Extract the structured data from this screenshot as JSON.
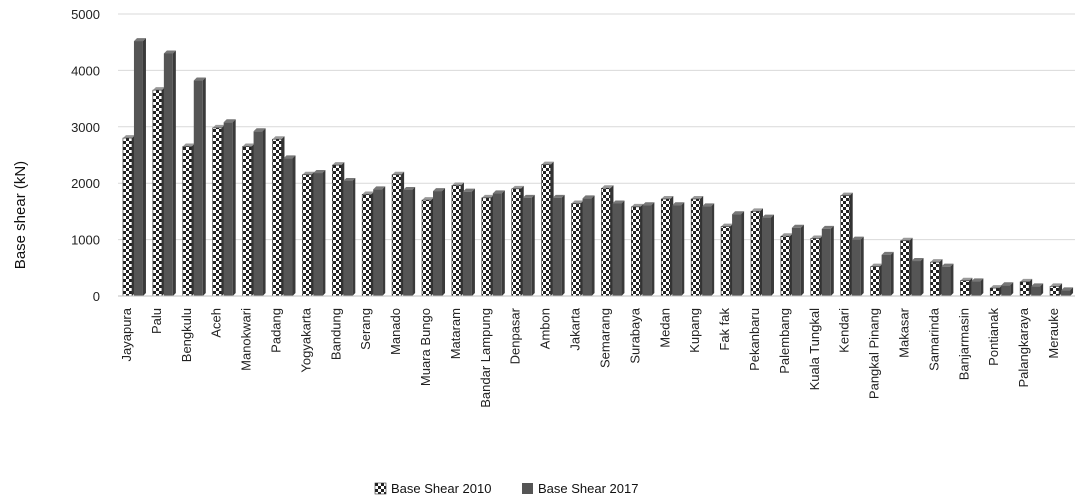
{
  "chart_data": {
    "type": "bar",
    "title": "",
    "xlabel": "",
    "ylabel": "Base shear (kN)",
    "ylim": [
      0,
      5000
    ],
    "yticks": [
      0,
      1000,
      2000,
      3000,
      4000,
      5000
    ],
    "grid": true,
    "legend_position": "bottom",
    "categories": [
      "Jayapura",
      "Palu",
      "Bengkulu",
      "Aceh",
      "Manokwari",
      "Padang",
      "Yogyakarta",
      "Bandung",
      "Serang",
      "Manado",
      "Muara Bungo",
      "Mataram",
      "Bandar Lampung",
      "Denpasar",
      "Ambon",
      "Jakarta",
      "Semarang",
      "Surabaya",
      "Medan",
      "Kupang",
      "Fak fak",
      "Pekanbaru",
      "Palembang",
      "Kuala Tungkal",
      "Kendari",
      "Pangkal Pinang",
      "Makasar",
      "Samarinda",
      "Banjarmasin",
      "Pontianak",
      "Palangkaraya",
      "Merauke"
    ],
    "series": [
      {
        "name": "Base Shear 2010",
        "pattern": "checker",
        "color": "#ffffff",
        "values": [
          2800,
          3650,
          2650,
          2980,
          2650,
          2780,
          2150,
          2320,
          1800,
          2150,
          1700,
          1960,
          1740,
          1900,
          2330,
          1640,
          1910,
          1580,
          1720,
          1720,
          1230,
          1500,
          1060,
          1020,
          1780,
          520,
          980,
          600,
          270,
          140,
          250,
          170
        ]
      },
      {
        "name": "Base Shear 2017",
        "pattern": "solid",
        "color": "#555555",
        "values": [
          4520,
          4300,
          3820,
          3080,
          2920,
          2440,
          2180,
          2040,
          1890,
          1880,
          1860,
          1850,
          1820,
          1740,
          1740,
          1730,
          1640,
          1610,
          1610,
          1590,
          1450,
          1390,
          1210,
          1190,
          1000,
          730,
          620,
          520,
          260,
          190,
          170,
          100
        ]
      }
    ]
  }
}
